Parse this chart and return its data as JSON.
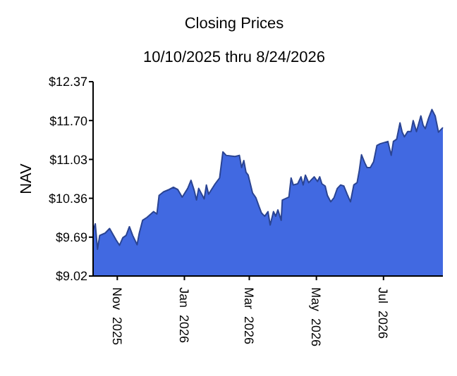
{
  "chart_data": {
    "type": "area",
    "title": "Closing Prices",
    "subtitle": "10/10/2025 thru 8/24/2026",
    "ylabel": "NAV",
    "x": [
      "2025-10-10",
      "2025-10-12",
      "2025-10-14",
      "2025-10-16",
      "2025-10-21",
      "2025-10-25",
      "2025-10-31",
      "2025-11-03",
      "2025-11-06",
      "2025-11-09",
      "2025-11-12",
      "2025-11-15",
      "2025-11-19",
      "2025-11-21",
      "2025-11-24",
      "2025-11-28",
      "2025-12-04",
      "2025-12-07",
      "2025-12-09",
      "2025-12-13",
      "2025-12-18",
      "2025-12-22",
      "2025-12-26",
      "2025-12-30",
      "2026-01-04",
      "2026-01-07",
      "2026-01-10",
      "2026-01-12",
      "2026-01-14",
      "2026-01-19",
      "2026-01-21",
      "2026-01-23",
      "2026-01-29",
      "2026-02-02",
      "2026-02-05",
      "2026-02-08",
      "2026-02-16",
      "2026-02-20",
      "2026-02-22",
      "2026-02-24",
      "2026-02-26",
      "2026-02-28",
      "2026-03-04",
      "2026-03-07",
      "2026-03-10",
      "2026-03-12",
      "2026-03-15",
      "2026-03-18",
      "2026-03-20",
      "2026-03-23",
      "2026-03-25",
      "2026-03-27",
      "2026-03-30",
      "2026-03-31",
      "2026-04-06",
      "2026-04-08",
      "2026-04-10",
      "2026-04-14",
      "2026-04-17",
      "2026-04-19",
      "2026-04-21",
      "2026-04-24",
      "2026-04-29",
      "2026-05-02",
      "2026-05-04",
      "2026-05-06",
      "2026-05-09",
      "2026-05-11",
      "2026-05-14",
      "2026-05-17",
      "2026-05-20",
      "2026-05-23",
      "2026-05-26",
      "2026-05-29",
      "2026-06-01",
      "2026-06-04",
      "2026-06-07",
      "2026-06-09",
      "2026-06-11",
      "2026-06-14",
      "2026-06-16",
      "2026-06-19",
      "2026-06-22",
      "2026-06-25",
      "2026-06-28",
      "2026-07-05",
      "2026-07-08",
      "2026-07-10",
      "2026-07-13",
      "2026-07-16",
      "2026-07-18",
      "2026-07-20",
      "2026-07-23",
      "2026-07-26",
      "2026-07-28",
      "2026-07-31",
      "2026-08-04",
      "2026-08-06",
      "2026-08-08",
      "2026-08-11",
      "2026-08-14",
      "2026-08-17",
      "2026-08-20",
      "2026-08-22",
      "2026-08-24"
    ],
    "series": [
      {
        "color": "#4169e1",
        "values": [
          9.8,
          9.92,
          9.48,
          9.72,
          9.76,
          9.84,
          9.64,
          9.55,
          9.68,
          9.72,
          9.87,
          9.72,
          9.56,
          9.76,
          9.98,
          10.03,
          10.13,
          10.09,
          10.41,
          10.47,
          10.51,
          10.55,
          10.51,
          10.38,
          10.53,
          10.67,
          10.49,
          10.33,
          10.53,
          10.35,
          10.59,
          10.43,
          10.61,
          10.71,
          11.16,
          11.1,
          11.08,
          11.1,
          10.89,
          11.01,
          10.81,
          10.76,
          10.45,
          10.37,
          10.21,
          10.11,
          10.05,
          10.13,
          9.9,
          10.13,
          10.05,
          10.16,
          9.98,
          10.33,
          10.38,
          10.71,
          10.59,
          10.61,
          10.73,
          10.59,
          10.76,
          10.63,
          10.73,
          10.65,
          10.73,
          10.61,
          10.57,
          10.41,
          10.3,
          10.37,
          10.53,
          10.59,
          10.57,
          10.43,
          10.3,
          10.59,
          10.63,
          10.84,
          11.11,
          10.97,
          10.89,
          10.89,
          10.99,
          11.27,
          11.3,
          11.34,
          11.1,
          11.34,
          11.38,
          11.66,
          11.5,
          11.42,
          11.51,
          11.51,
          11.7,
          11.51,
          11.78,
          11.62,
          11.56,
          11.74,
          11.89,
          11.78,
          11.5,
          11.54,
          11.58
        ]
      }
    ],
    "xlim": [
      "2025-10-10",
      "2026-08-24"
    ],
    "xticks": [
      {
        "value": "2025-11-01",
        "label": "Nov  2025"
      },
      {
        "value": "2026-01-01",
        "label": "Jan  2026"
      },
      {
        "value": "2026-03-01",
        "label": "Mar  2026"
      },
      {
        "value": "2026-05-01",
        "label": "May  2026"
      },
      {
        "value": "2026-07-01",
        "label": "Jul  2026"
      }
    ],
    "ylim": [
      9.02,
      12.37
    ],
    "yticks": [
      {
        "value": 9.02,
        "label": "$9.02"
      },
      {
        "value": 9.69,
        "label": "$9.69"
      },
      {
        "value": 10.36,
        "label": "$10.36"
      },
      {
        "value": 11.03,
        "label": "$11.03"
      },
      {
        "value": 11.7,
        "label": "$11.70"
      },
      {
        "value": 12.37,
        "label": "$12.37"
      }
    ],
    "grid": false
  }
}
